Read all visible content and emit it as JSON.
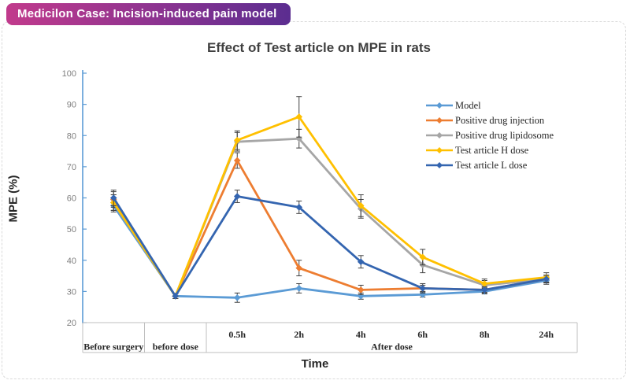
{
  "header": {
    "title": "Medicilon Case: Incision-induced pain model",
    "gradient_left": "#c13a8c",
    "gradient_right": "#5b2d90",
    "text_color": "#ffffff"
  },
  "frame": {
    "border_color": "#d9d9d9"
  },
  "chart": {
    "title": "Effect of Test article on MPE in rats",
    "y_axis_title": "MPE (%)",
    "x_axis_title": "Time"
  },
  "chart_data": {
    "type": "line",
    "title": "Effect of Test article on MPE in rats",
    "xlabel": "Time",
    "ylabel": "MPE (%)",
    "ylim": [
      20,
      100
    ],
    "ytick_step": 10,
    "grid": false,
    "legend_position": "right-top",
    "categories": [
      "Before surgery",
      "before dose",
      "0.5h",
      "2h",
      "4h",
      "6h",
      "8h",
      "24h"
    ],
    "group_labels": [
      {
        "label": "Before surgery",
        "span": [
          0,
          0
        ]
      },
      {
        "label": "before dose",
        "span": [
          1,
          1
        ]
      },
      {
        "label": "After dose",
        "span": [
          2,
          7
        ]
      }
    ],
    "time_label_columns": [
      2,
      3,
      4,
      5,
      6,
      7
    ],
    "series": [
      {
        "name": "Model",
        "color": "#5B9BD5",
        "values": [
          57.5,
          28.5,
          28,
          31,
          28.5,
          29,
          30,
          33.5
        ],
        "errors": [
          2,
          0.8,
          1.5,
          1.5,
          1,
          0.8,
          0.8,
          1.2
        ]
      },
      {
        "name": "Positive drug injection",
        "color": "#ED7D31",
        "values": [
          59.5,
          28.5,
          72,
          37.5,
          30.5,
          31,
          30.5,
          34
        ],
        "errors": [
          2.5,
          0.8,
          2.5,
          2.5,
          1.5,
          1,
          0.8,
          1.2
        ]
      },
      {
        "name": "Positive drug lipidosome",
        "color": "#A6A6A6",
        "values": [
          58.5,
          28.5,
          78,
          79,
          56.5,
          38.5,
          32,
          34
        ],
        "errors": [
          2.5,
          0.8,
          3,
          3,
          3,
          2.5,
          1.5,
          1.2
        ]
      },
      {
        "name": "Test article H dose",
        "color": "#FFC000",
        "values": [
          58.5,
          28.5,
          78.5,
          86,
          57.5,
          41,
          32.5,
          34.5
        ],
        "errors": [
          2.5,
          0.8,
          3,
          6.5,
          3.5,
          2.5,
          1.5,
          1.5
        ]
      },
      {
        "name": "Test article L dose",
        "color": "#3465B0",
        "values": [
          60,
          28.5,
          60.5,
          57,
          39.5,
          31,
          30.5,
          34
        ],
        "errors": [
          2.5,
          0.8,
          2,
          2,
          2,
          1.5,
          1,
          1.2
        ]
      }
    ],
    "colors": {
      "y_axis": "#5B9BD5",
      "band_lines": "#bfbfbf",
      "error_bars": "#404040",
      "tick_text": "#7f7f7f",
      "category_text": "#262626"
    }
  }
}
